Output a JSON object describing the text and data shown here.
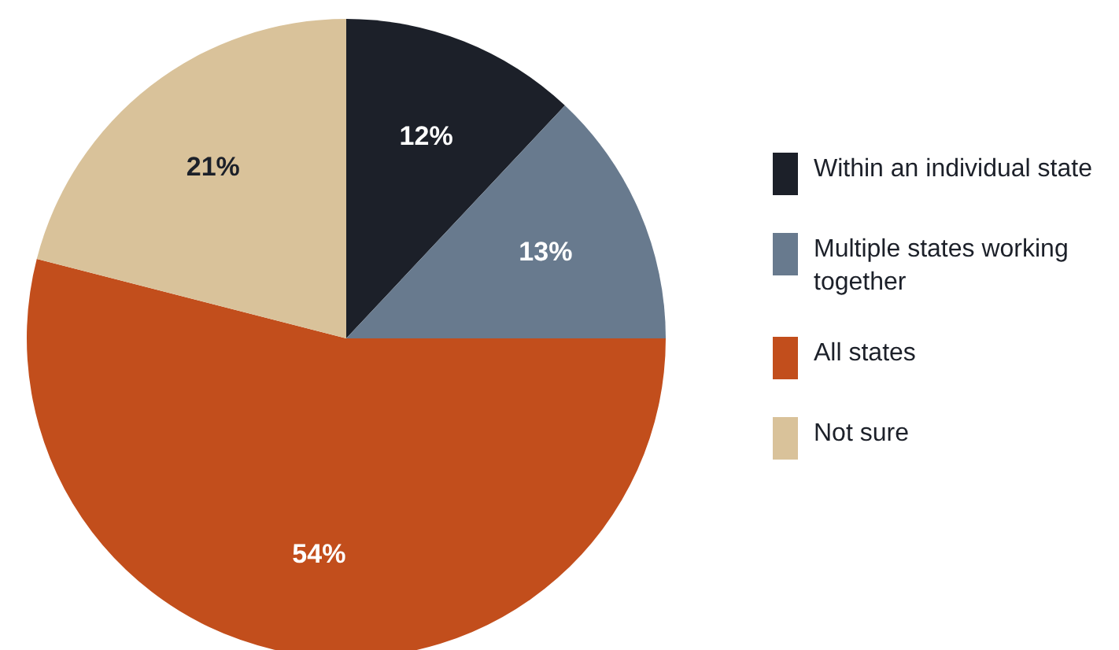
{
  "chart_data": {
    "type": "pie",
    "categories": [
      "Within an individual state",
      "Multiple states working together",
      "All states",
      "Not sure"
    ],
    "values": [
      12,
      13,
      54,
      21
    ],
    "colors": [
      "#1c2029",
      "#687a8e",
      "#c24e1c",
      "#d9c29a"
    ],
    "value_labels": [
      "12%",
      "13%",
      "54%",
      "21%"
    ],
    "legend": "right"
  }
}
